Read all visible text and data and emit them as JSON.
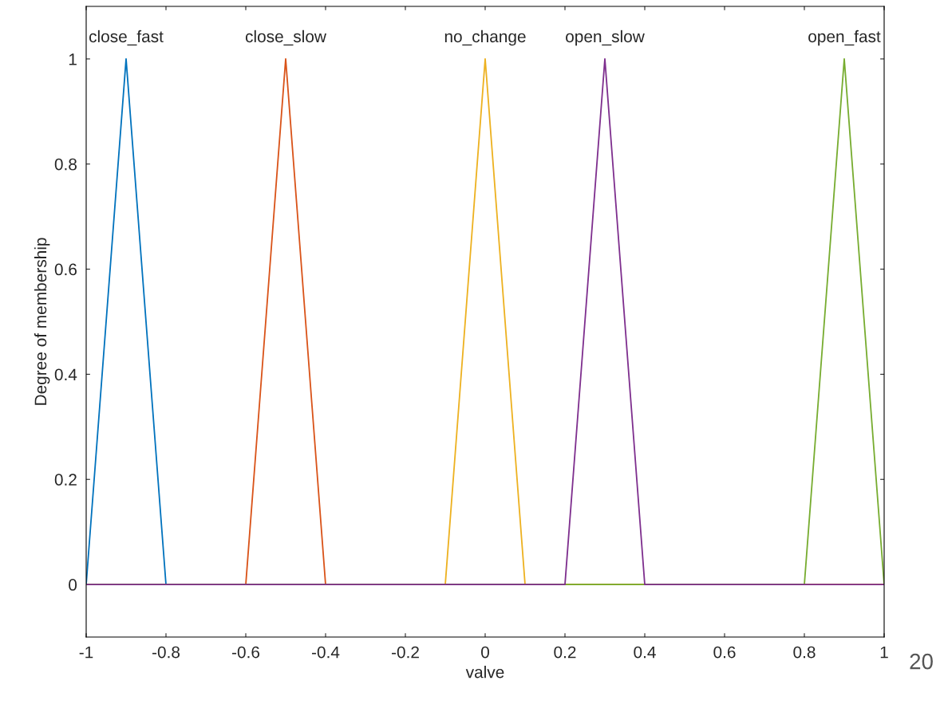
{
  "chart_data": {
    "type": "line",
    "xlabel": "valve",
    "ylabel": "Degree of membership",
    "series": [
      {
        "name": "close_fast",
        "color": "#0072bd",
        "x": [
          -1,
          -0.9,
          -0.8,
          1
        ],
        "values": [
          0,
          1,
          0,
          0
        ]
      },
      {
        "name": "close_slow",
        "color": "#d95319",
        "x": [
          -1,
          -0.6,
          -0.5,
          -0.4,
          1
        ],
        "values": [
          0,
          0,
          1,
          0,
          0
        ]
      },
      {
        "name": "no_change",
        "color": "#edb120",
        "x": [
          -1,
          -0.1,
          0,
          0.1,
          1
        ],
        "values": [
          0,
          0,
          1,
          0,
          0
        ]
      },
      {
        "name": "open_fast",
        "color": "#77ac30",
        "x": [
          -1,
          0.8,
          0.9,
          1
        ],
        "values": [
          0,
          0,
          1,
          0
        ]
      },
      {
        "name": "open_slow",
        "color": "#7e2f8e",
        "x": [
          -1,
          0.2,
          0.3,
          0.4,
          1
        ],
        "values": [
          0,
          0,
          1,
          0,
          0
        ]
      }
    ],
    "xlim": [
      -1,
      1
    ],
    "ylim": [
      -0.1,
      1.1
    ],
    "xticks": [
      -1,
      -0.8,
      -0.6,
      -0.4,
      -0.2,
      0,
      0.2,
      0.4,
      0.6,
      0.8,
      1
    ],
    "yticks": [
      0,
      0.2,
      0.4,
      0.6,
      0.8,
      1
    ],
    "grid": false,
    "legend": false,
    "marker": "none",
    "line_style": "solid",
    "annotations": [
      "20"
    ]
  }
}
